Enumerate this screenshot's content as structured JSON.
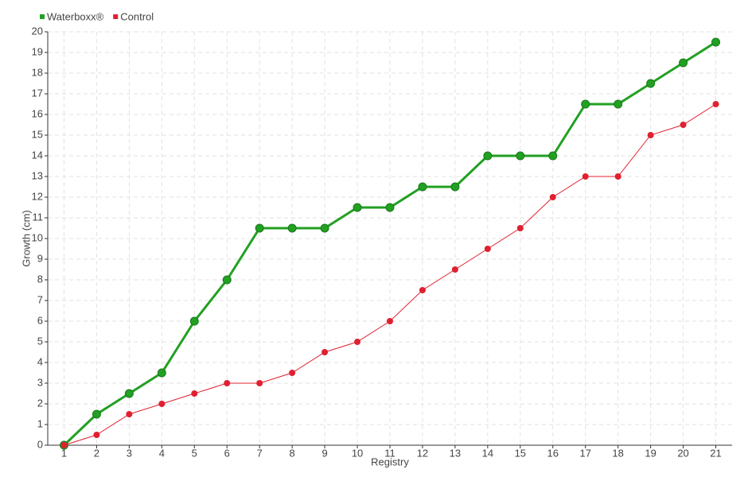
{
  "chart_data": {
    "type": "line",
    "x_label": "Registry",
    "y_label": "Growth (cm)",
    "categories": [
      "1",
      "2",
      "3",
      "4",
      "5",
      "6",
      "7",
      "8",
      "9",
      "10",
      "11",
      "12",
      "13",
      "14",
      "15",
      "16",
      "17",
      "18",
      "19",
      "20",
      "21"
    ],
    "series": [
      {
        "name": "Waterboxx®",
        "color": "#22a022",
        "values": [
          0,
          1.5,
          2.5,
          3.5,
          6,
          8,
          10.5,
          10.5,
          10.5,
          11.5,
          11.5,
          12.5,
          12.5,
          14,
          14,
          14,
          16.5,
          16.5,
          17.5,
          18.5,
          19.5
        ]
      },
      {
        "name": "Control",
        "color": "#e02030",
        "values": [
          0,
          0.5,
          1.5,
          2,
          2.5,
          3,
          3,
          3.5,
          4.5,
          5,
          6,
          7.5,
          8.5,
          9.5,
          10.5,
          12,
          13,
          13,
          15,
          15.5,
          16.5
        ]
      }
    ],
    "ylim": [
      0,
      20
    ],
    "yticks": [
      0,
      1,
      2,
      3,
      4,
      5,
      6,
      7,
      8,
      9,
      10,
      11,
      12,
      13,
      14,
      15,
      16,
      17,
      18,
      19,
      20
    ],
    "grid": true,
    "legend": "top-left"
  }
}
